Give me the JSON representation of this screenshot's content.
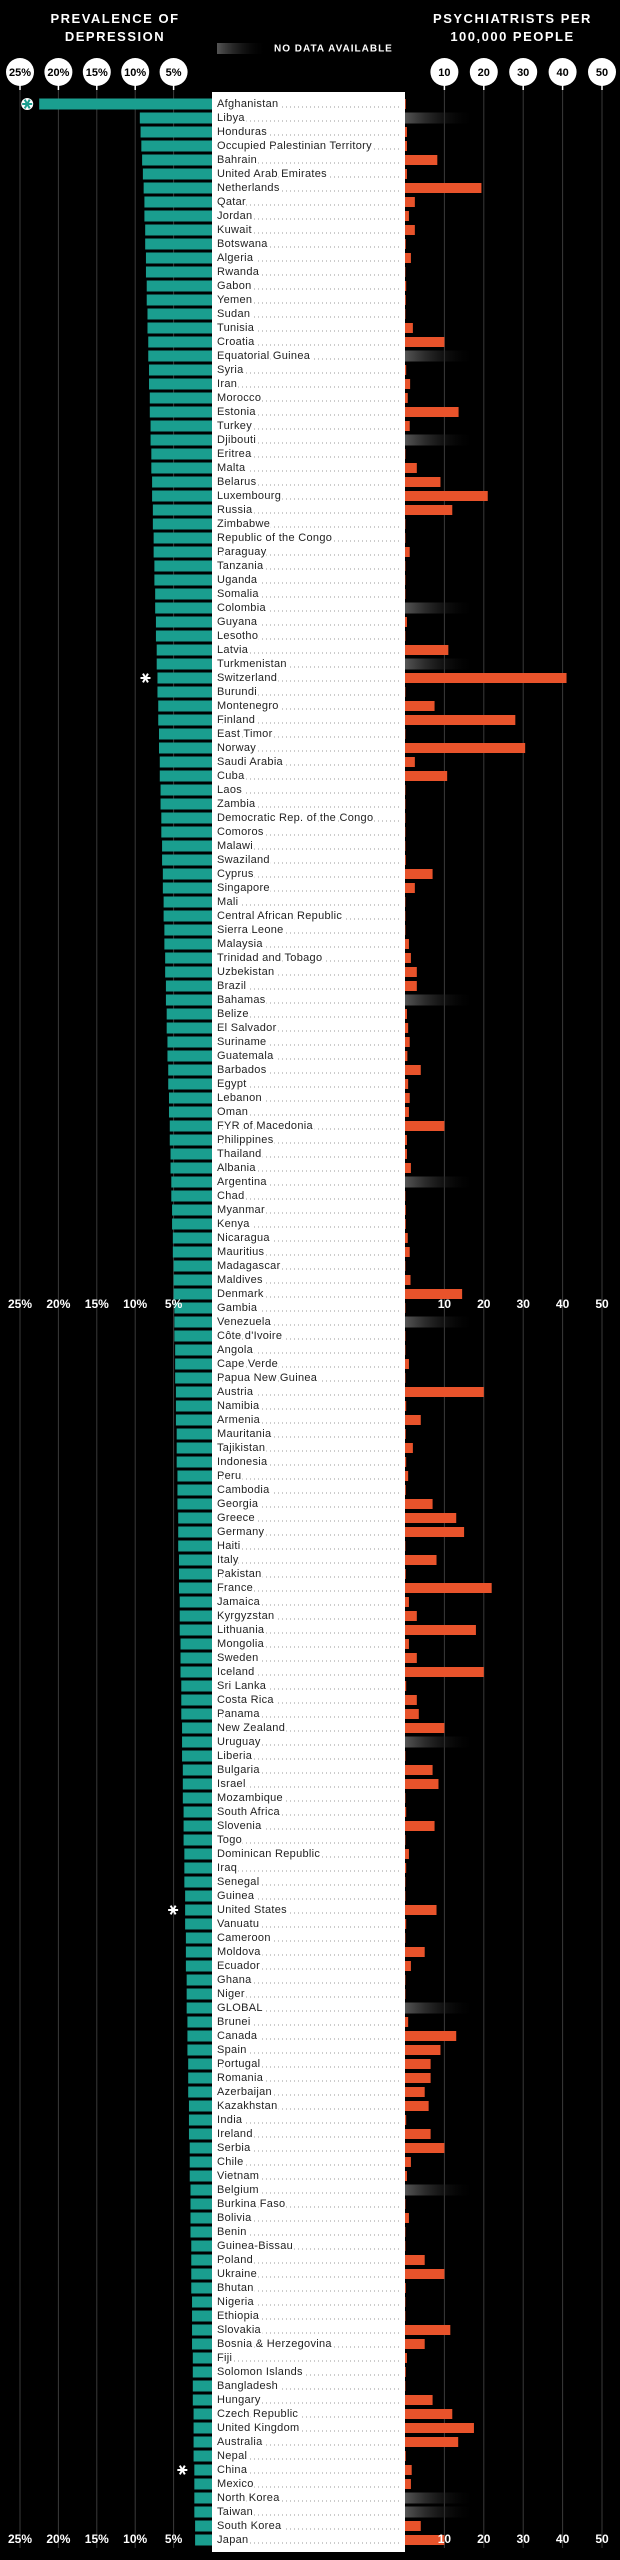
{
  "chart_data": {
    "type": "bar",
    "no_data_label": "NO DATA AVAILABLE",
    "categories": [
      "Afghanistan",
      "Libya",
      "Honduras",
      "Occupied Palestinian Territory",
      "Bahrain",
      "United Arab Emirates",
      "Netherlands",
      "Qatar",
      "Jordan",
      "Kuwait",
      "Botswana",
      "Algeria",
      "Rwanda",
      "Gabon",
      "Yemen",
      "Sudan",
      "Tunisia",
      "Croatia",
      "Equatorial Guinea",
      "Syria",
      "Iran",
      "Morocco",
      "Estonia",
      "Turkey",
      "Djibouti",
      "Eritrea",
      "Malta",
      "Belarus",
      "Luxembourg",
      "Russia",
      "Zimbabwe",
      "Republic of the Congo",
      "Paraguay",
      "Tanzania",
      "Uganda",
      "Somalia",
      "Colombia",
      "Guyana",
      "Lesotho",
      "Latvia",
      "Turkmenistan",
      "Switzerland",
      "Burundi",
      "Montenegro",
      "Finland",
      "East Timor",
      "Norway",
      "Saudi Arabia",
      "Cuba",
      "Laos",
      "Zambia",
      "Democratic Rep. of the Congo",
      "Comoros",
      "Malawi",
      "Swaziland",
      "Cyprus",
      "Singapore",
      "Mali",
      "Central African Republic",
      "Sierra Leone",
      "Malaysia",
      "Trinidad and Tobago",
      "Uzbekistan",
      "Brazil",
      "Bahamas",
      "Belize",
      "El Salvador",
      "Suriname",
      "Guatemala",
      "Barbados",
      "Egypt",
      "Lebanon",
      "Oman",
      "FYR of Macedonia",
      "Philippines",
      "Thailand",
      "Albania",
      "Argentina",
      "Chad",
      "Myanmar",
      "Kenya",
      "Nicaragua",
      "Mauritius",
      "Madagascar",
      "Maldives",
      "Denmark",
      "Gambia",
      "Venezuela",
      "Côte d'Ivoire",
      "Angola",
      "Cape Verde",
      "Papua New Guinea",
      "Austria",
      "Namibia",
      "Armenia",
      "Mauritania",
      "Tajikistan",
      "Indonesia",
      "Peru",
      "Cambodia",
      "Georgia",
      "Greece",
      "Germany",
      "Haiti",
      "Italy",
      "Pakistan",
      "France",
      "Jamaica",
      "Kyrgyzstan",
      "Lithuania",
      "Mongolia",
      "Sweden",
      "Iceland",
      "Sri Lanka",
      "Costa Rica",
      "Panama",
      "New Zealand",
      "Uruguay",
      "Liberia",
      "Bulgaria",
      "Israel",
      "Mozambique",
      "South Africa",
      "Slovenia",
      "Togo",
      "Dominican Republic",
      "Iraq",
      "Senegal",
      "Guinea",
      "United States",
      "Vanuatu",
      "Cameroon",
      "Moldova",
      "Ecuador",
      "Ghana",
      "Niger",
      "GLOBAL",
      "Brunei",
      "Canada",
      "Spain",
      "Portugal",
      "Romania",
      "Azerbaijan",
      "Kazakhstan",
      "India",
      "Ireland",
      "Serbia",
      "Chile",
      "Vietnam",
      "Belgium",
      "Burkina Faso",
      "Bolivia",
      "Benin",
      "Guinea-Bissau",
      "Poland",
      "Ukraine",
      "Bhutan",
      "Nigeria",
      "Ethiopia",
      "Slovakia",
      "Bosnia & Herzegovina",
      "Fiji",
      "Solomon Islands",
      "Bangladesh",
      "Hungary",
      "Czech Republic",
      "United Kingdom",
      "Australia",
      "Nepal",
      "China",
      "Mexico",
      "North Korea",
      "Taiwan",
      "South Korea",
      "Japan"
    ],
    "series": [
      {
        "name": "PREVALENCE OF DEPRESSION",
        "color": "#1a9e8f",
        "values": [
          22.5,
          9.4,
          9.3,
          9.2,
          9.1,
          9.0,
          8.9,
          8.8,
          8.8,
          8.7,
          8.7,
          8.6,
          8.6,
          8.5,
          8.5,
          8.4,
          8.4,
          8.3,
          8.3,
          8.2,
          8.2,
          8.1,
          8.1,
          8.0,
          8.0,
          7.9,
          7.9,
          7.8,
          7.8,
          7.7,
          7.7,
          7.6,
          7.6,
          7.5,
          7.5,
          7.4,
          7.4,
          7.3,
          7.3,
          7.2,
          7.2,
          7.1,
          7.1,
          7.0,
          7.0,
          6.9,
          6.9,
          6.8,
          6.8,
          6.7,
          6.7,
          6.6,
          6.6,
          6.5,
          6.5,
          6.4,
          6.4,
          6.3,
          6.3,
          6.2,
          6.2,
          6.1,
          6.1,
          6.0,
          6.0,
          5.9,
          5.9,
          5.8,
          5.8,
          5.7,
          5.7,
          5.6,
          5.6,
          5.5,
          5.5,
          5.4,
          5.4,
          5.3,
          5.3,
          5.2,
          5.2,
          5.1,
          5.1,
          5.0,
          5.0,
          5.0,
          4.9,
          4.9,
          4.9,
          4.8,
          4.8,
          4.8,
          4.7,
          4.7,
          4.7,
          4.6,
          4.6,
          4.6,
          4.5,
          4.5,
          4.5,
          4.4,
          4.4,
          4.4,
          4.3,
          4.3,
          4.3,
          4.2,
          4.2,
          4.2,
          4.1,
          4.1,
          4.1,
          4.0,
          4.0,
          4.0,
          3.9,
          3.9,
          3.9,
          3.8,
          3.8,
          3.8,
          3.7,
          3.7,
          3.7,
          3.6,
          3.6,
          3.6,
          3.5,
          3.5,
          3.5,
          3.4,
          3.4,
          3.4,
          3.3,
          3.3,
          3.3,
          3.2,
          3.2,
          3.2,
          3.1,
          3.1,
          3.1,
          3.0,
          3.0,
          3.0,
          2.9,
          2.9,
          2.9,
          2.8,
          2.8,
          2.8,
          2.8,
          2.7,
          2.7,
          2.7,
          2.7,
          2.6,
          2.6,
          2.6,
          2.6,
          2.5,
          2.5,
          2.5,
          2.5,
          2.4,
          2.4,
          2.4,
          2.4,
          2.3,
          2.3,
          2.3,
          2.3,
          2.2,
          2.2
        ]
      },
      {
        "name": "PSYCHIATRISTS PER 100,000 PEOPLE",
        "color": "#e8532b",
        "axis": "x2",
        "values": [
          0.2,
          null,
          0.5,
          0.5,
          8.2,
          0.5,
          19.4,
          2.5,
          1,
          2.5,
          0.2,
          1.5,
          0.1,
          0.3,
          0.2,
          0.1,
          2,
          10,
          null,
          0.3,
          1.3,
          0.7,
          13.6,
          1.2,
          null,
          0.1,
          3,
          9,
          21,
          12,
          0.1,
          0.1,
          1.2,
          0.1,
          0.1,
          0.1,
          null,
          0.5,
          0.1,
          11,
          null,
          41,
          0.1,
          7.5,
          28,
          0.1,
          30.5,
          2.5,
          10.7,
          0.1,
          0.1,
          0.1,
          0.1,
          0.1,
          0.2,
          7,
          2.5,
          0.1,
          0.1,
          0.1,
          1,
          1.5,
          3,
          3,
          null,
          0.5,
          0.8,
          1.2,
          0.6,
          4,
          0.8,
          1.2,
          1,
          10,
          0.5,
          0.5,
          1.5,
          null,
          0.1,
          0.2,
          0.2,
          0.7,
          1.2,
          0.1,
          1.4,
          14.5,
          0.1,
          null,
          0.1,
          0.1,
          1,
          0.1,
          20,
          0.3,
          4,
          0.2,
          2,
          0.3,
          0.8,
          0.2,
          7,
          13,
          15,
          0.1,
          8,
          0.2,
          22,
          1,
          3,
          18,
          1,
          3,
          20,
          0.3,
          3,
          3.5,
          10,
          null,
          0.1,
          7,
          8.5,
          0.1,
          0.3,
          7.5,
          0.1,
          1,
          0.3,
          0.1,
          0.1,
          8,
          0.3,
          0.1,
          5,
          1.5,
          0.1,
          0.1,
          null,
          0.8,
          13,
          9,
          6.5,
          6.5,
          5,
          6,
          0.3,
          6.5,
          10,
          1.5,
          0.5,
          null,
          0.1,
          1,
          0.1,
          0.1,
          5,
          10,
          0.2,
          0.1,
          0.1,
          11.5,
          5,
          0.5,
          0.2,
          0.1,
          7,
          12,
          17.5,
          13.5,
          0.2,
          1.7,
          1.5,
          null,
          null,
          4,
          10
        ]
      }
    ],
    "xlim": [
      0,
      25
    ],
    "xticks": [
      {
        "value": 25,
        "label": "25%"
      },
      {
        "value": 20,
        "label": "20%"
      },
      {
        "value": 15,
        "label": "15%"
      },
      {
        "value": 10,
        "label": "10%"
      },
      {
        "value": 5,
        "label": "5%"
      }
    ],
    "x2lim": [
      0,
      50
    ],
    "x2ticks": [
      10,
      20,
      30,
      40,
      50
    ],
    "grid": true
  }
}
